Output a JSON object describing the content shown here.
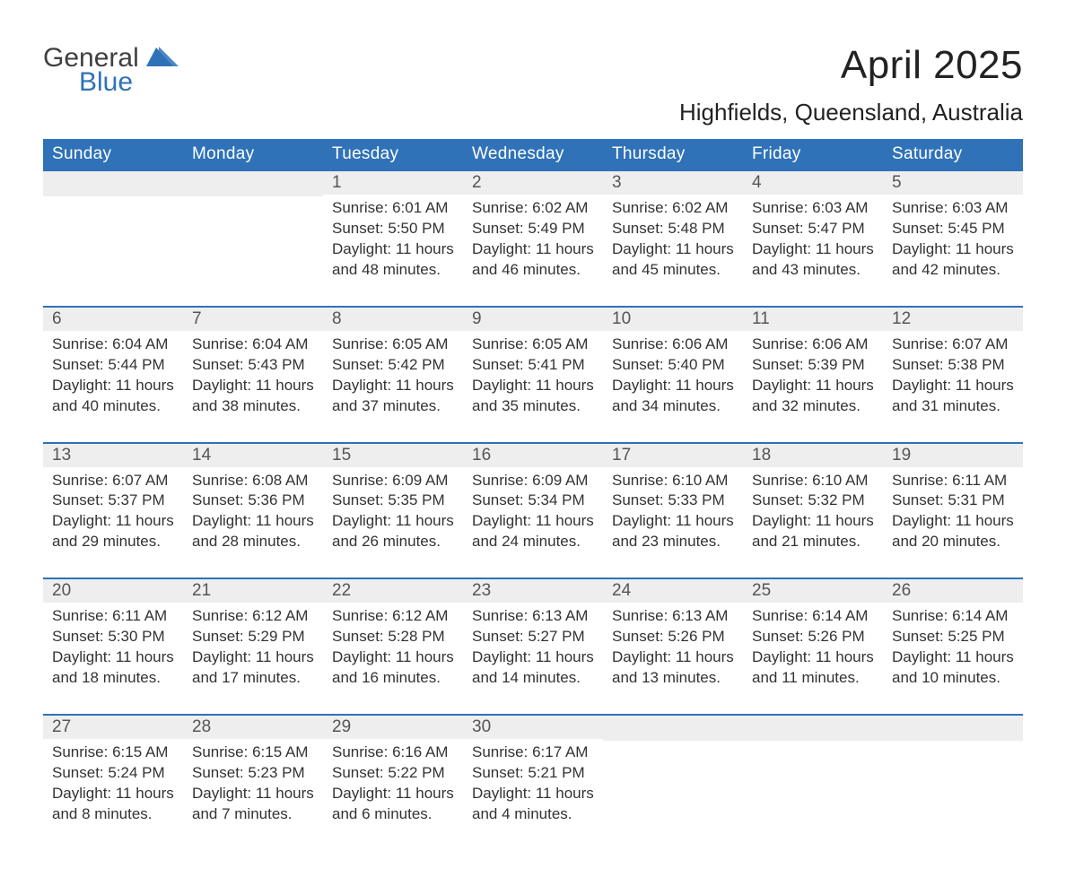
{
  "logo": {
    "word1": "General",
    "word2": "Blue",
    "word1_color": "#404040",
    "word2_color": "#2f72b8",
    "tri_color": "#2f72b8"
  },
  "header": {
    "month_title": "April 2025",
    "location": "Highfields, Queensland, Australia",
    "title_fontsize": 44,
    "location_fontsize": 26,
    "text_color": "#222222"
  },
  "calendar": {
    "header_bg": "#2f72b8",
    "header_text_color": "#ffffff",
    "week_border_color": "#2f72b8",
    "daynum_bg": "#eeeeee",
    "body_text_color": "#333333",
    "weekday_names": [
      "Sunday",
      "Monday",
      "Tuesday",
      "Wednesday",
      "Thursday",
      "Friday",
      "Saturday"
    ],
    "weeks": [
      [
        null,
        null,
        {
          "n": "1",
          "sunrise": "Sunrise: 6:01 AM",
          "sunset": "Sunset: 5:50 PM",
          "daylight": "Daylight: 11 hours and 48 minutes."
        },
        {
          "n": "2",
          "sunrise": "Sunrise: 6:02 AM",
          "sunset": "Sunset: 5:49 PM",
          "daylight": "Daylight: 11 hours and 46 minutes."
        },
        {
          "n": "3",
          "sunrise": "Sunrise: 6:02 AM",
          "sunset": "Sunset: 5:48 PM",
          "daylight": "Daylight: 11 hours and 45 minutes."
        },
        {
          "n": "4",
          "sunrise": "Sunrise: 6:03 AM",
          "sunset": "Sunset: 5:47 PM",
          "daylight": "Daylight: 11 hours and 43 minutes."
        },
        {
          "n": "5",
          "sunrise": "Sunrise: 6:03 AM",
          "sunset": "Sunset: 5:45 PM",
          "daylight": "Daylight: 11 hours and 42 minutes."
        }
      ],
      [
        {
          "n": "6",
          "sunrise": "Sunrise: 6:04 AM",
          "sunset": "Sunset: 5:44 PM",
          "daylight": "Daylight: 11 hours and 40 minutes."
        },
        {
          "n": "7",
          "sunrise": "Sunrise: 6:04 AM",
          "sunset": "Sunset: 5:43 PM",
          "daylight": "Daylight: 11 hours and 38 minutes."
        },
        {
          "n": "8",
          "sunrise": "Sunrise: 6:05 AM",
          "sunset": "Sunset: 5:42 PM",
          "daylight": "Daylight: 11 hours and 37 minutes."
        },
        {
          "n": "9",
          "sunrise": "Sunrise: 6:05 AM",
          "sunset": "Sunset: 5:41 PM",
          "daylight": "Daylight: 11 hours and 35 minutes."
        },
        {
          "n": "10",
          "sunrise": "Sunrise: 6:06 AM",
          "sunset": "Sunset: 5:40 PM",
          "daylight": "Daylight: 11 hours and 34 minutes."
        },
        {
          "n": "11",
          "sunrise": "Sunrise: 6:06 AM",
          "sunset": "Sunset: 5:39 PM",
          "daylight": "Daylight: 11 hours and 32 minutes."
        },
        {
          "n": "12",
          "sunrise": "Sunrise: 6:07 AM",
          "sunset": "Sunset: 5:38 PM",
          "daylight": "Daylight: 11 hours and 31 minutes."
        }
      ],
      [
        {
          "n": "13",
          "sunrise": "Sunrise: 6:07 AM",
          "sunset": "Sunset: 5:37 PM",
          "daylight": "Daylight: 11 hours and 29 minutes."
        },
        {
          "n": "14",
          "sunrise": "Sunrise: 6:08 AM",
          "sunset": "Sunset: 5:36 PM",
          "daylight": "Daylight: 11 hours and 28 minutes."
        },
        {
          "n": "15",
          "sunrise": "Sunrise: 6:09 AM",
          "sunset": "Sunset: 5:35 PM",
          "daylight": "Daylight: 11 hours and 26 minutes."
        },
        {
          "n": "16",
          "sunrise": "Sunrise: 6:09 AM",
          "sunset": "Sunset: 5:34 PM",
          "daylight": "Daylight: 11 hours and 24 minutes."
        },
        {
          "n": "17",
          "sunrise": "Sunrise: 6:10 AM",
          "sunset": "Sunset: 5:33 PM",
          "daylight": "Daylight: 11 hours and 23 minutes."
        },
        {
          "n": "18",
          "sunrise": "Sunrise: 6:10 AM",
          "sunset": "Sunset: 5:32 PM",
          "daylight": "Daylight: 11 hours and 21 minutes."
        },
        {
          "n": "19",
          "sunrise": "Sunrise: 6:11 AM",
          "sunset": "Sunset: 5:31 PM",
          "daylight": "Daylight: 11 hours and 20 minutes."
        }
      ],
      [
        {
          "n": "20",
          "sunrise": "Sunrise: 6:11 AM",
          "sunset": "Sunset: 5:30 PM",
          "daylight": "Daylight: 11 hours and 18 minutes."
        },
        {
          "n": "21",
          "sunrise": "Sunrise: 6:12 AM",
          "sunset": "Sunset: 5:29 PM",
          "daylight": "Daylight: 11 hours and 17 minutes."
        },
        {
          "n": "22",
          "sunrise": "Sunrise: 6:12 AM",
          "sunset": "Sunset: 5:28 PM",
          "daylight": "Daylight: 11 hours and 16 minutes."
        },
        {
          "n": "23",
          "sunrise": "Sunrise: 6:13 AM",
          "sunset": "Sunset: 5:27 PM",
          "daylight": "Daylight: 11 hours and 14 minutes."
        },
        {
          "n": "24",
          "sunrise": "Sunrise: 6:13 AM",
          "sunset": "Sunset: 5:26 PM",
          "daylight": "Daylight: 11 hours and 13 minutes."
        },
        {
          "n": "25",
          "sunrise": "Sunrise: 6:14 AM",
          "sunset": "Sunset: 5:26 PM",
          "daylight": "Daylight: 11 hours and 11 minutes."
        },
        {
          "n": "26",
          "sunrise": "Sunrise: 6:14 AM",
          "sunset": "Sunset: 5:25 PM",
          "daylight": "Daylight: 11 hours and 10 minutes."
        }
      ],
      [
        {
          "n": "27",
          "sunrise": "Sunrise: 6:15 AM",
          "sunset": "Sunset: 5:24 PM",
          "daylight": "Daylight: 11 hours and 8 minutes."
        },
        {
          "n": "28",
          "sunrise": "Sunrise: 6:15 AM",
          "sunset": "Sunset: 5:23 PM",
          "daylight": "Daylight: 11 hours and 7 minutes."
        },
        {
          "n": "29",
          "sunrise": "Sunrise: 6:16 AM",
          "sunset": "Sunset: 5:22 PM",
          "daylight": "Daylight: 11 hours and 6 minutes."
        },
        {
          "n": "30",
          "sunrise": "Sunrise: 6:17 AM",
          "sunset": "Sunset: 5:21 PM",
          "daylight": "Daylight: 11 hours and 4 minutes."
        },
        null,
        null,
        null
      ]
    ]
  }
}
